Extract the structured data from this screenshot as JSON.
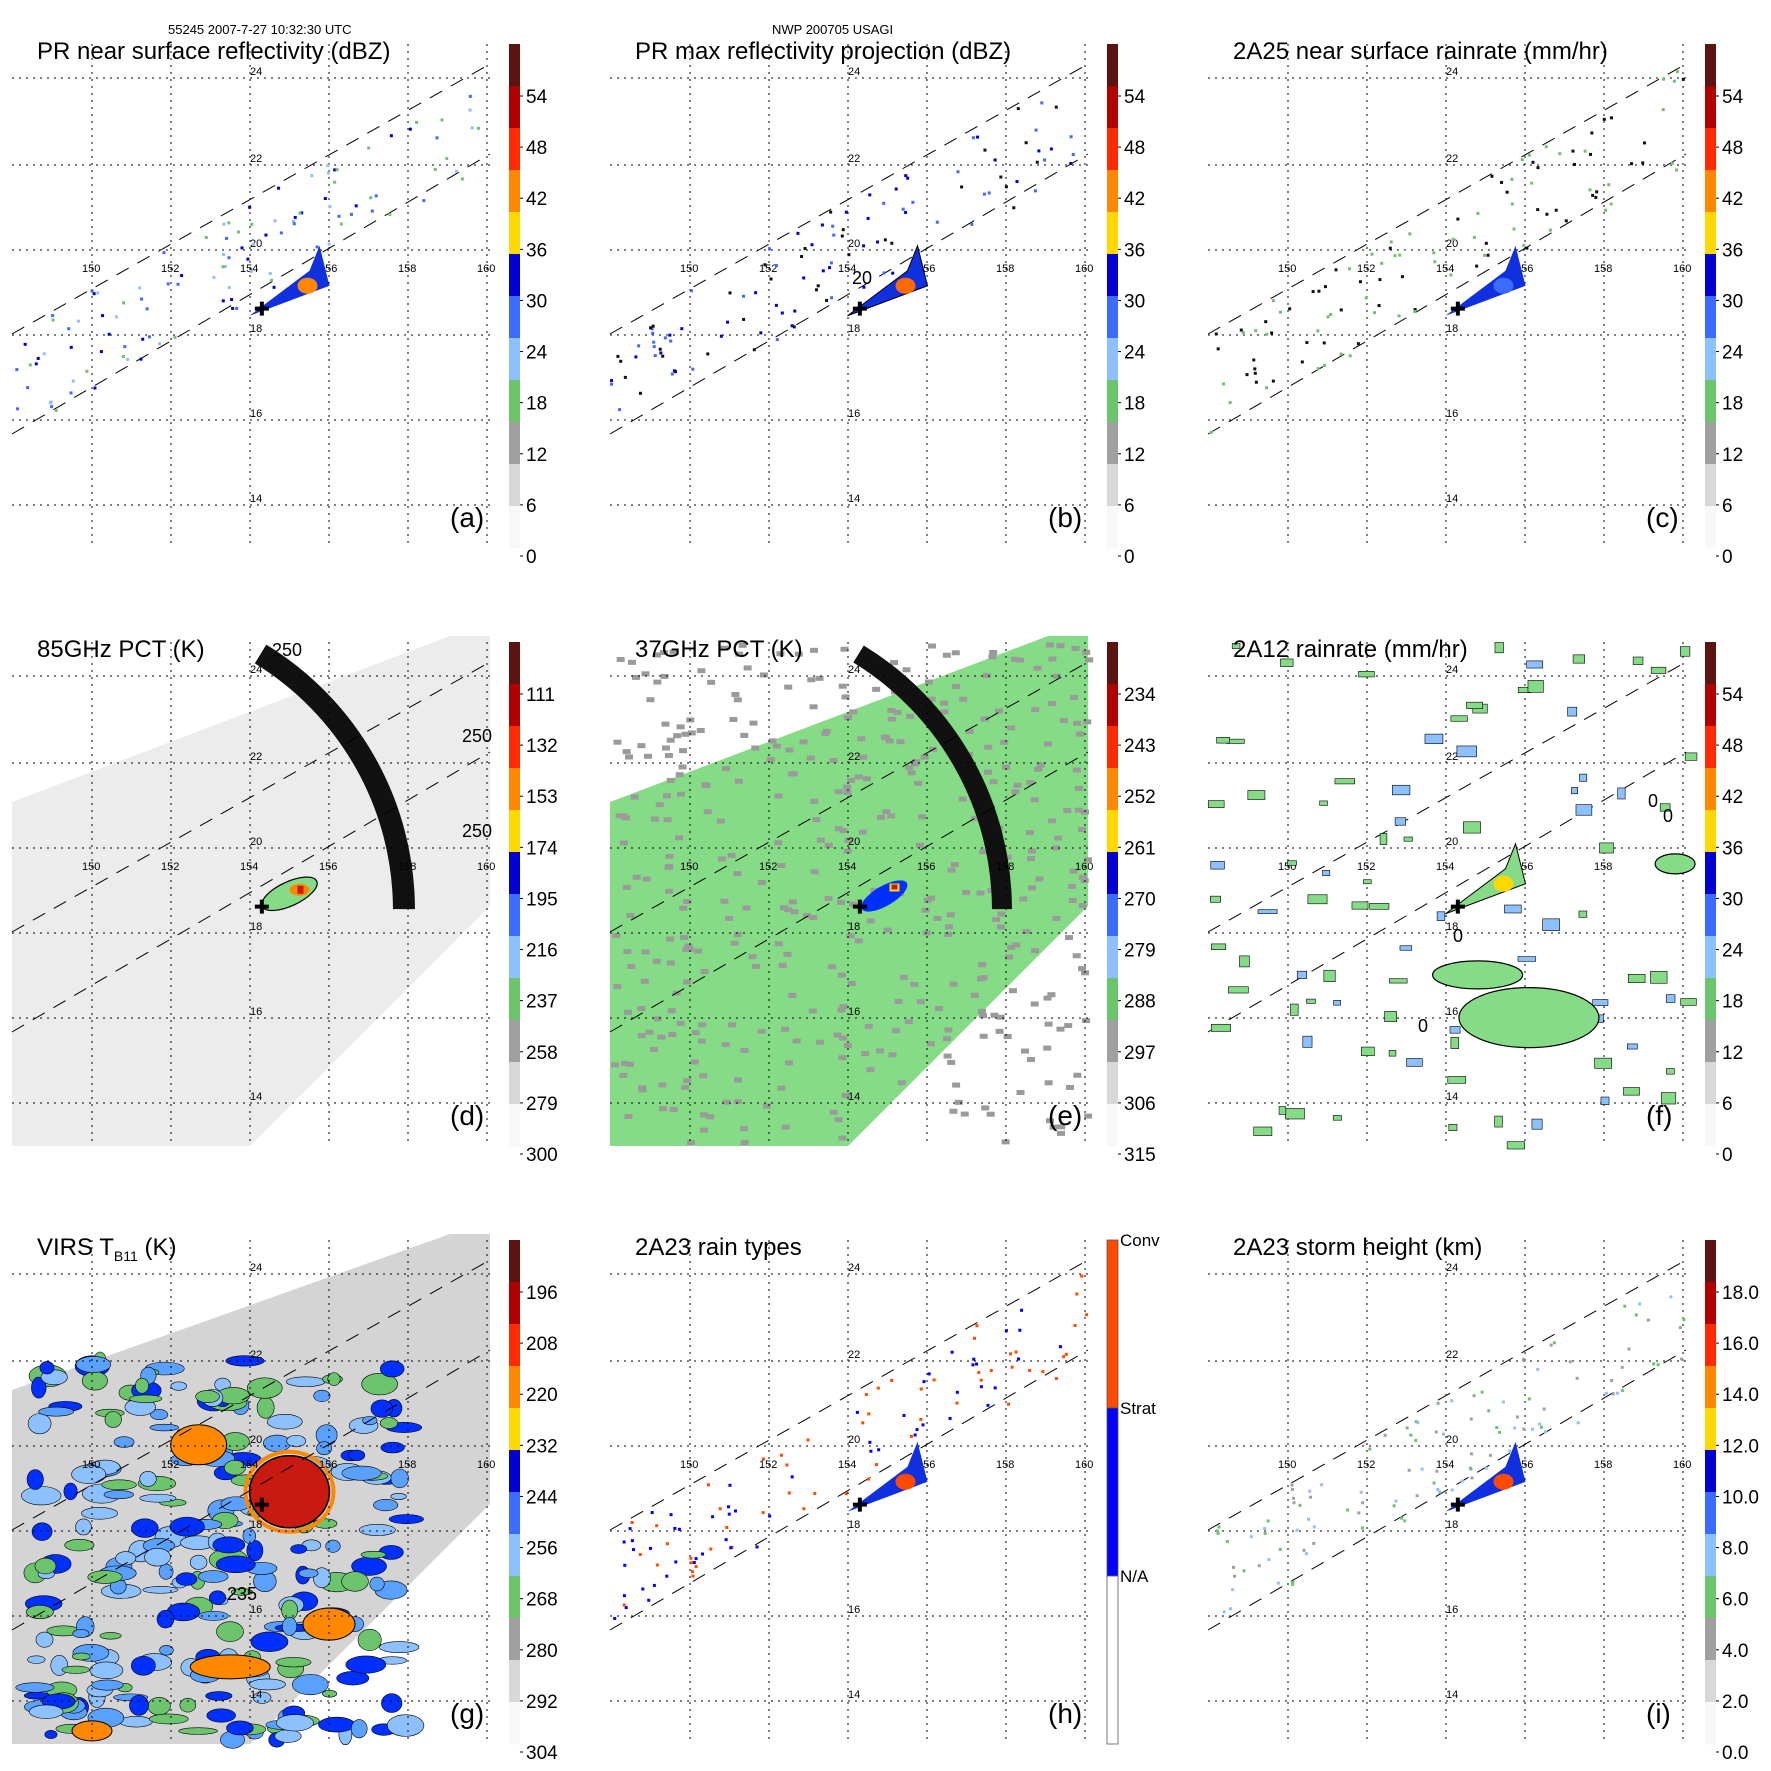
{
  "header": {
    "left": "55245 2007-7-27 10:32:30 UTC",
    "center": "NWP 200705 USAGI"
  },
  "map_axes": {
    "lon_ticks": [
      "150",
      "152",
      "154",
      "156",
      "158",
      "160"
    ],
    "lat_ticks": [
      "24",
      "22",
      "20",
      "18",
      "16",
      "14"
    ],
    "lon_range": [
      148.5,
      160.8
    ],
    "lat_range": [
      12.8,
      25.0
    ],
    "storm_center": {
      "lon": 154.3,
      "lat": 18.6
    }
  },
  "chart_data": [
    {
      "type": "heatmap",
      "id": "a",
      "title": "PR near surface reflectivity (dBZ)",
      "panel_label": "(a)",
      "colorbar": {
        "ticks": [
          "54",
          "48",
          "42",
          "36",
          "30",
          "24",
          "18",
          "12",
          "6",
          "0"
        ],
        "range": [
          0,
          60
        ],
        "colors": [
          "#5c1410",
          "#b00000",
          "#ff2a00",
          "#ff8800",
          "#ffd800",
          "#0000d0",
          "#3b6cff",
          "#8cc0ff",
          "#6cc46c",
          "#a0a0a0",
          "#d8d8d8",
          "#f8f8f8"
        ]
      },
      "swath": true,
      "features": [
        {
          "kind": "echo",
          "lon": 154.9,
          "lat": 18.9,
          "max": 48,
          "note": "convective core"
        },
        {
          "kind": "scattered",
          "region": "swath",
          "range_dbz": [
            18,
            36
          ]
        }
      ]
    },
    {
      "type": "heatmap",
      "id": "b",
      "title": "PR max reflectivity projection (dBZ)",
      "panel_label": "(b)",
      "colorbar": {
        "ticks": [
          "54",
          "48",
          "42",
          "36",
          "30",
          "24",
          "18",
          "12",
          "6",
          "0"
        ],
        "range": [
          0,
          60
        ]
      },
      "swath": true,
      "contour_labels": [
        "20"
      ],
      "features": [
        {
          "kind": "echo",
          "lon": 155.0,
          "lat": 18.9,
          "max": 48,
          "note": "convective core"
        }
      ]
    },
    {
      "type": "heatmap",
      "id": "c",
      "title": "2A25 near surface rainrate (mm/hr)",
      "panel_label": "(c)",
      "colorbar": {
        "ticks": [
          "54",
          "48",
          "42",
          "36",
          "30",
          "24",
          "18",
          "12",
          "6",
          "0"
        ],
        "range": [
          0,
          60
        ]
      },
      "swath": true,
      "features": [
        {
          "kind": "rain",
          "lon": 154.9,
          "lat": 18.9,
          "max": 24
        }
      ]
    },
    {
      "type": "heatmap",
      "id": "d",
      "title": "85GHz PCT (K)",
      "panel_label": "(d)",
      "colorbar": {
        "ticks": [
          "111",
          "132",
          "153",
          "174",
          "195",
          "216",
          "237",
          "258",
          "279",
          "300"
        ],
        "range": [
          90,
          300
        ]
      },
      "contour_labels": [
        "250",
        "250",
        "250"
      ],
      "features": [
        {
          "kind": "cold",
          "lon": 155.0,
          "lat": 18.9,
          "min": 132
        }
      ]
    },
    {
      "type": "heatmap",
      "id": "e",
      "title": "37GHz PCT (K)",
      "panel_label": "(e)",
      "colorbar": {
        "ticks": [
          "234",
          "243",
          "252",
          "261",
          "270",
          "279",
          "288",
          "297",
          "306",
          "315"
        ],
        "range": [
          225,
          315
        ]
      },
      "features": [
        {
          "kind": "cold",
          "lon": 155.0,
          "lat": 19.0,
          "min": 243
        }
      ]
    },
    {
      "type": "heatmap",
      "id": "f",
      "title": "2A12 rainrate (mm/hr)",
      "panel_label": "(f)",
      "colorbar": {
        "ticks": [
          "54",
          "48",
          "42",
          "36",
          "30",
          "24",
          "18",
          "12",
          "6",
          "0"
        ],
        "range": [
          0,
          60
        ]
      },
      "swath": true,
      "contour_labels": [
        "0",
        "0",
        "0",
        "0"
      ],
      "features": [
        {
          "kind": "rain",
          "lon": 155.0,
          "lat": 19.0,
          "max": 30
        }
      ]
    },
    {
      "type": "heatmap",
      "id": "g",
      "title_main": "VIRS T",
      "title_sub": "B11",
      "title_unit": " (K)",
      "panel_label": "(g)",
      "colorbar": {
        "ticks": [
          "196",
          "208",
          "220",
          "232",
          "244",
          "256",
          "268",
          "280",
          "292",
          "304"
        ],
        "range": [
          184,
          304
        ]
      },
      "contour_labels": [
        "235"
      ],
      "features": [
        {
          "kind": "cold",
          "lon": 155.0,
          "lat": 18.9,
          "min": 196,
          "note": "central dense overcast"
        }
      ]
    },
    {
      "type": "heatmap",
      "id": "h",
      "title": "2A23 rain types",
      "panel_label": "(h)",
      "colorbar": {
        "categories": [
          "Conv",
          "Strat",
          "N/A"
        ],
        "colors": [
          "#ff4a00",
          "#0000ff",
          "#ffffff"
        ]
      },
      "swath": true
    },
    {
      "type": "heatmap",
      "id": "i",
      "title": "2A23 storm height (km)",
      "panel_label": "(i)",
      "colorbar": {
        "ticks": [
          "18.0",
          "16.0",
          "14.0",
          "12.0",
          "10.0",
          "8.0",
          "6.0",
          "4.0",
          "2.0",
          "0.0"
        ],
        "range": [
          0,
          20
        ]
      },
      "swath": true,
      "features": [
        {
          "kind": "tops",
          "lon": 155.1,
          "lat": 18.9,
          "max": 16
        }
      ]
    }
  ]
}
